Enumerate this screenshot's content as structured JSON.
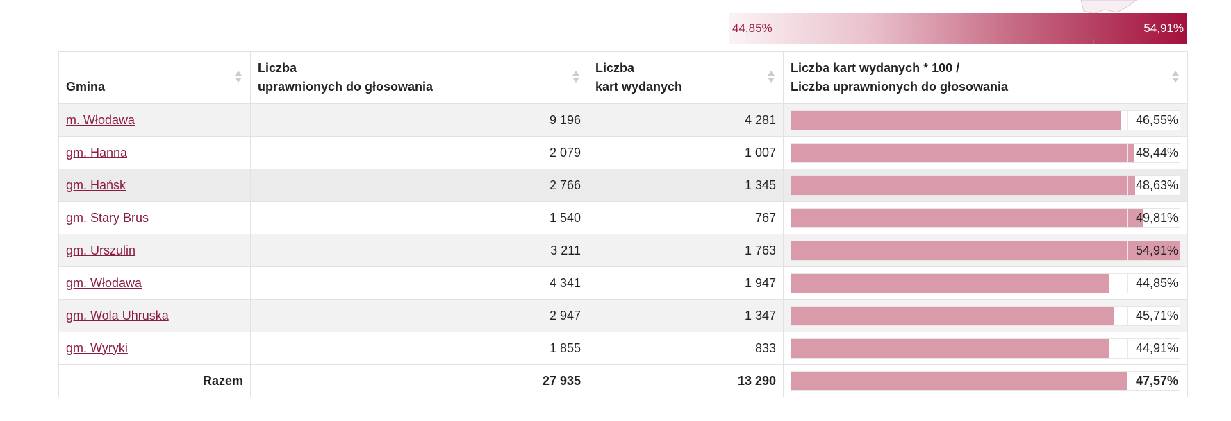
{
  "legend": {
    "min_label": "44,85%",
    "max_label": "54,91%",
    "min": 44.85,
    "max": 54.91
  },
  "table": {
    "headers": {
      "gmina": "Gmina",
      "voters_line1": "Liczba",
      "voters_line2": "uprawnionych do głosowania",
      "cards_line1": "Liczba",
      "cards_line2": "kart wydanych",
      "turnout_line1": "Liczba kart wydanych * 100 /",
      "turnout_line2": "Liczba uprawnionych do głosowania"
    },
    "rows": [
      {
        "name": "m. Włodawa",
        "voters": "9 196",
        "cards": "4 281",
        "turnout": "46,55%",
        "pct": 46.55
      },
      {
        "name": "gm. Hanna",
        "voters": "2 079",
        "cards": "1 007",
        "turnout": "48,44%",
        "pct": 48.44
      },
      {
        "name": "gm. Hańsk",
        "voters": "2 766",
        "cards": "1 345",
        "turnout": "48,63%",
        "pct": 48.63
      },
      {
        "name": "gm. Stary Brus",
        "voters": "1 540",
        "cards": "767",
        "turnout": "49,81%",
        "pct": 49.81
      },
      {
        "name": "gm. Urszulin",
        "voters": "3 211",
        "cards": "1 763",
        "turnout": "54,91%",
        "pct": 54.91
      },
      {
        "name": "gm. Włodawa",
        "voters": "4 341",
        "cards": "1 947",
        "turnout": "44,85%",
        "pct": 44.85
      },
      {
        "name": "gm. Wola Uhruska",
        "voters": "2 947",
        "cards": "1 347",
        "turnout": "45,71%",
        "pct": 45.71
      },
      {
        "name": "gm. Wyryki",
        "voters": "1 855",
        "cards": "833",
        "turnout": "44,91%",
        "pct": 44.91
      }
    ],
    "total": {
      "label": "Razem",
      "voters": "27 935",
      "cards": "13 290",
      "turnout": "47,57%",
      "pct": 47.57
    }
  },
  "colors": {
    "link": "#8c1d40",
    "bar": "#d99aa9",
    "legend_end": "#a3103c"
  }
}
